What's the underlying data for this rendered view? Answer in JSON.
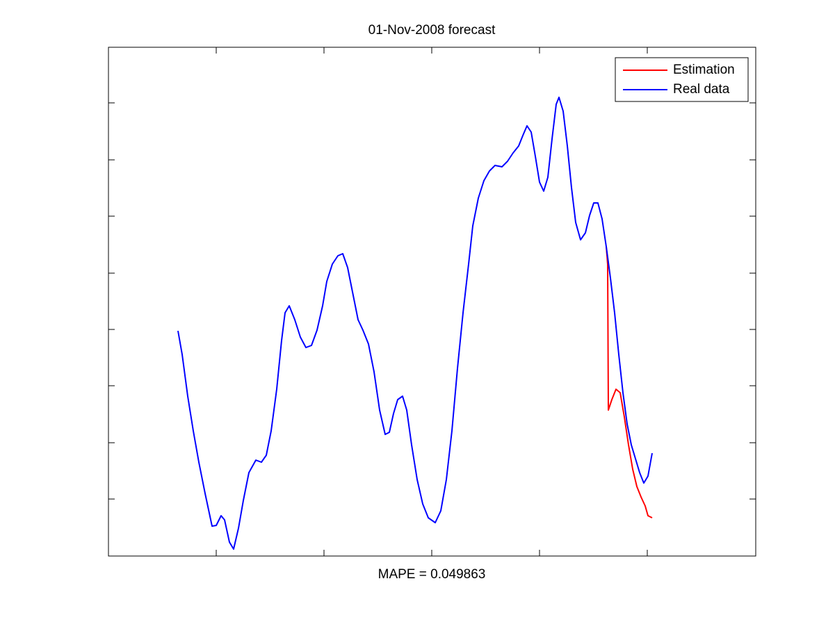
{
  "chart_data": {
    "type": "line",
    "title": "01-Nov-2008 forecast",
    "x_label": "MAPE = 0.049863",
    "xlim": [
      0,
      931
    ],
    "xticks": [
      155,
      310,
      465,
      620,
      775
    ],
    "ylim": [
      0,
      732
    ],
    "yticks": [
      82,
      163,
      245,
      326,
      407,
      489,
      570,
      652
    ],
    "legend": "northeast",
    "grid": false,
    "series": [
      {
        "name": "Estimation",
        "color": "#ff0000",
        "x": [
          716,
          718,
          719,
          724,
          730,
          736,
          742,
          748,
          754,
          760,
          766,
          772,
          776,
          782
        ],
        "values": [
          445,
          420,
          210,
          225,
          240,
          235,
          200,
          160,
          125,
          100,
          85,
          72,
          58,
          55
        ]
      },
      {
        "name": "Real data",
        "color": "#0000ff",
        "x": [
          100,
          106,
          114,
          122,
          130,
          139,
          149,
          155,
          162,
          167,
          174,
          180,
          187,
          194,
          202,
          212,
          220,
          227,
          234,
          242,
          249,
          254,
          260,
          268,
          276,
          284,
          292,
          300,
          308,
          314,
          322,
          330,
          337,
          344,
          352,
          359,
          366,
          374,
          382,
          390,
          398,
          404,
          410,
          416,
          423,
          429,
          436,
          444,
          452,
          460,
          470,
          478,
          486,
          494,
          502,
          510,
          518,
          524,
          532,
          540,
          548,
          556,
          566,
          574,
          582,
          590,
          596,
          602,
          608,
          614,
          620,
          626,
          632,
          638,
          644,
          648,
          654,
          660,
          666,
          672,
          679,
          686,
          692,
          698,
          704,
          710,
          716,
          722,
          728,
          734,
          740,
          746,
          752,
          758,
          764,
          770,
          776,
          782
        ],
        "values": [
          324,
          290,
          230,
          180,
          135,
          90,
          43,
          44,
          58,
          52,
          20,
          10,
          40,
          80,
          120,
          138,
          135,
          145,
          180,
          240,
          310,
          350,
          360,
          340,
          315,
          300,
          303,
          325,
          360,
          395,
          420,
          432,
          435,
          415,
          375,
          340,
          325,
          305,
          265,
          210,
          175,
          178,
          205,
          225,
          230,
          210,
          160,
          110,
          75,
          55,
          48,
          65,
          110,
          180,
          270,
          350,
          420,
          475,
          515,
          540,
          554,
          562,
          560,
          568,
          580,
          590,
          605,
          619,
          610,
          575,
          538,
          525,
          545,
          600,
          650,
          660,
          640,
          590,
          530,
          480,
          455,
          465,
          490,
          508,
          508,
          485,
          445,
          400,
          350,
          290,
          235,
          190,
          160,
          140,
          120,
          105,
          115,
          148
        ]
      }
    ]
  }
}
